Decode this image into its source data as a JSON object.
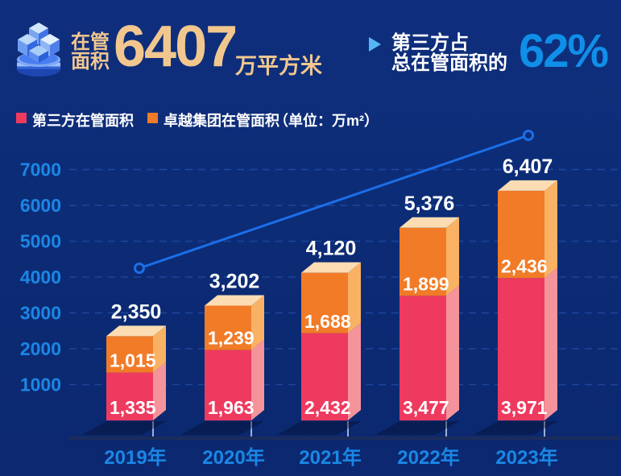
{
  "header": {
    "kpi_label_line1": "在管",
    "kpi_label_line2": "面积",
    "kpi_value": "6407",
    "kpi_unit": "万平方米",
    "highlight_line1": "第三方占",
    "highlight_line2": "总在管面积的",
    "highlight_value": "62%"
  },
  "legend": {
    "series1_label": "第三方在管面积",
    "series2_label": "卓越集团在管面积",
    "unit_note": "（单位：万m²）"
  },
  "chart_data": {
    "type": "bar",
    "stacked": true,
    "categories": [
      "2019年",
      "2020年",
      "2021年",
      "2022年",
      "2023年"
    ],
    "series": [
      {
        "name": "第三方在管面积",
        "color": "#ee3a5f",
        "values": [
          1335,
          1963,
          2432,
          3477,
          3971
        ]
      },
      {
        "name": "卓越集团在管面积",
        "color": "#f17b27",
        "values": [
          1015,
          1239,
          1688,
          1899,
          2436
        ]
      }
    ],
    "totals": [
      2350,
      3202,
      4120,
      5376,
      6407
    ],
    "y_ticks": [
      1000,
      2000,
      3000,
      4000,
      5000,
      6000,
      7000
    ],
    "ylim": [
      0,
      7400
    ],
    "grid": "horizontal dashed",
    "legend_position": "top-left",
    "trend_line": {
      "description": "growth line with hollow circle endpoints above 2019 and 2023 bars"
    }
  },
  "colors": {
    "background": "#0d2c75",
    "gold": "#f2c78e",
    "accent_blue": "#1a87e6",
    "bright_blue": "#0f8fe8",
    "trend_blue": "#1b6fe8",
    "red_front": "#ee3a5f",
    "red_side": "#f5939b",
    "orange_front": "#f17b27",
    "orange_side": "#f9b263",
    "top_face": "#fcdcb2",
    "grid_line": "#2a5cc0",
    "axis_band": "#1c2d5c",
    "tick": "#9db0d4",
    "value_label": "#ffffff"
  }
}
